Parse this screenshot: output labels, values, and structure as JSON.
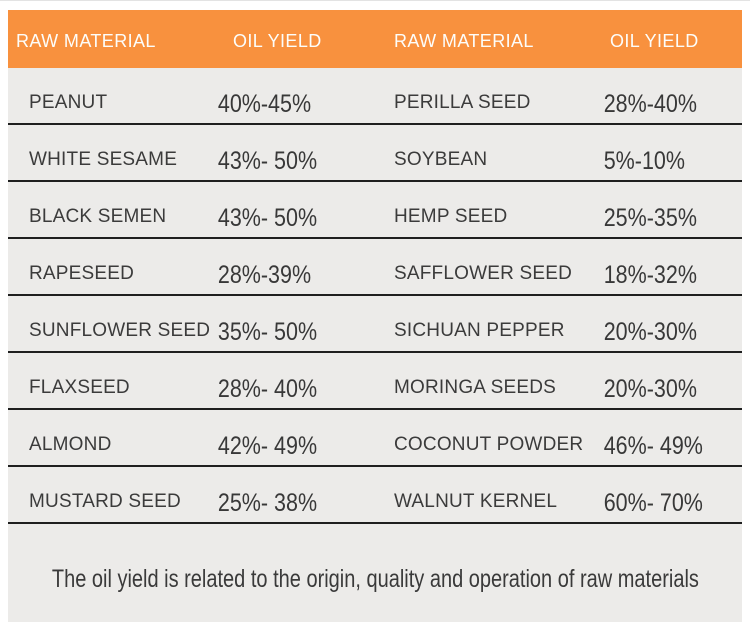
{
  "chart_data": {
    "type": "table",
    "columns": [
      "RAW MATERIAL",
      "OIL YIELD",
      "RAW MATERIAL",
      "OIL YIELD"
    ],
    "rows": [
      [
        "PEANUT",
        "40%-45%",
        "PERILLA SEED",
        "28%-40%"
      ],
      [
        "WHITE SESAME",
        "43%- 50%",
        "SOYBEAN",
        "5%-10%"
      ],
      [
        "BLACK SEMEN",
        "43%- 50%",
        "HEMP SEED",
        "25%-35%"
      ],
      [
        "RAPESEED",
        "28%-39%",
        "SAFFLOWER SEED",
        "18%-32%"
      ],
      [
        "SUNFLOWER SEED",
        "35%- 50%",
        "SICHUAN PEPPER",
        "20%-30%"
      ],
      [
        "FLAXSEED",
        "28%- 40%",
        "MORINGA SEEDS",
        "20%-30%"
      ],
      [
        "ALMOND",
        "42%- 49%",
        "COCONUT POWDER",
        "46%- 49%"
      ],
      [
        "MUSTARD SEED",
        "25%- 38%",
        "WALNUT KERNEL",
        "60%- 70%"
      ]
    ],
    "note": "The oil yield is related to the origin, quality and operation of raw materials",
    "layout": "two column-pairs, 8 rows, header band on top, note band at bottom"
  },
  "colors": {
    "header_bg": "#F8913E",
    "header_text": "#FDFDFA",
    "row_bg": "#ECEBE9",
    "separator": "#1F1F1F",
    "body_text": "#3B3B3B",
    "page_bg": "#FFFFFF"
  }
}
